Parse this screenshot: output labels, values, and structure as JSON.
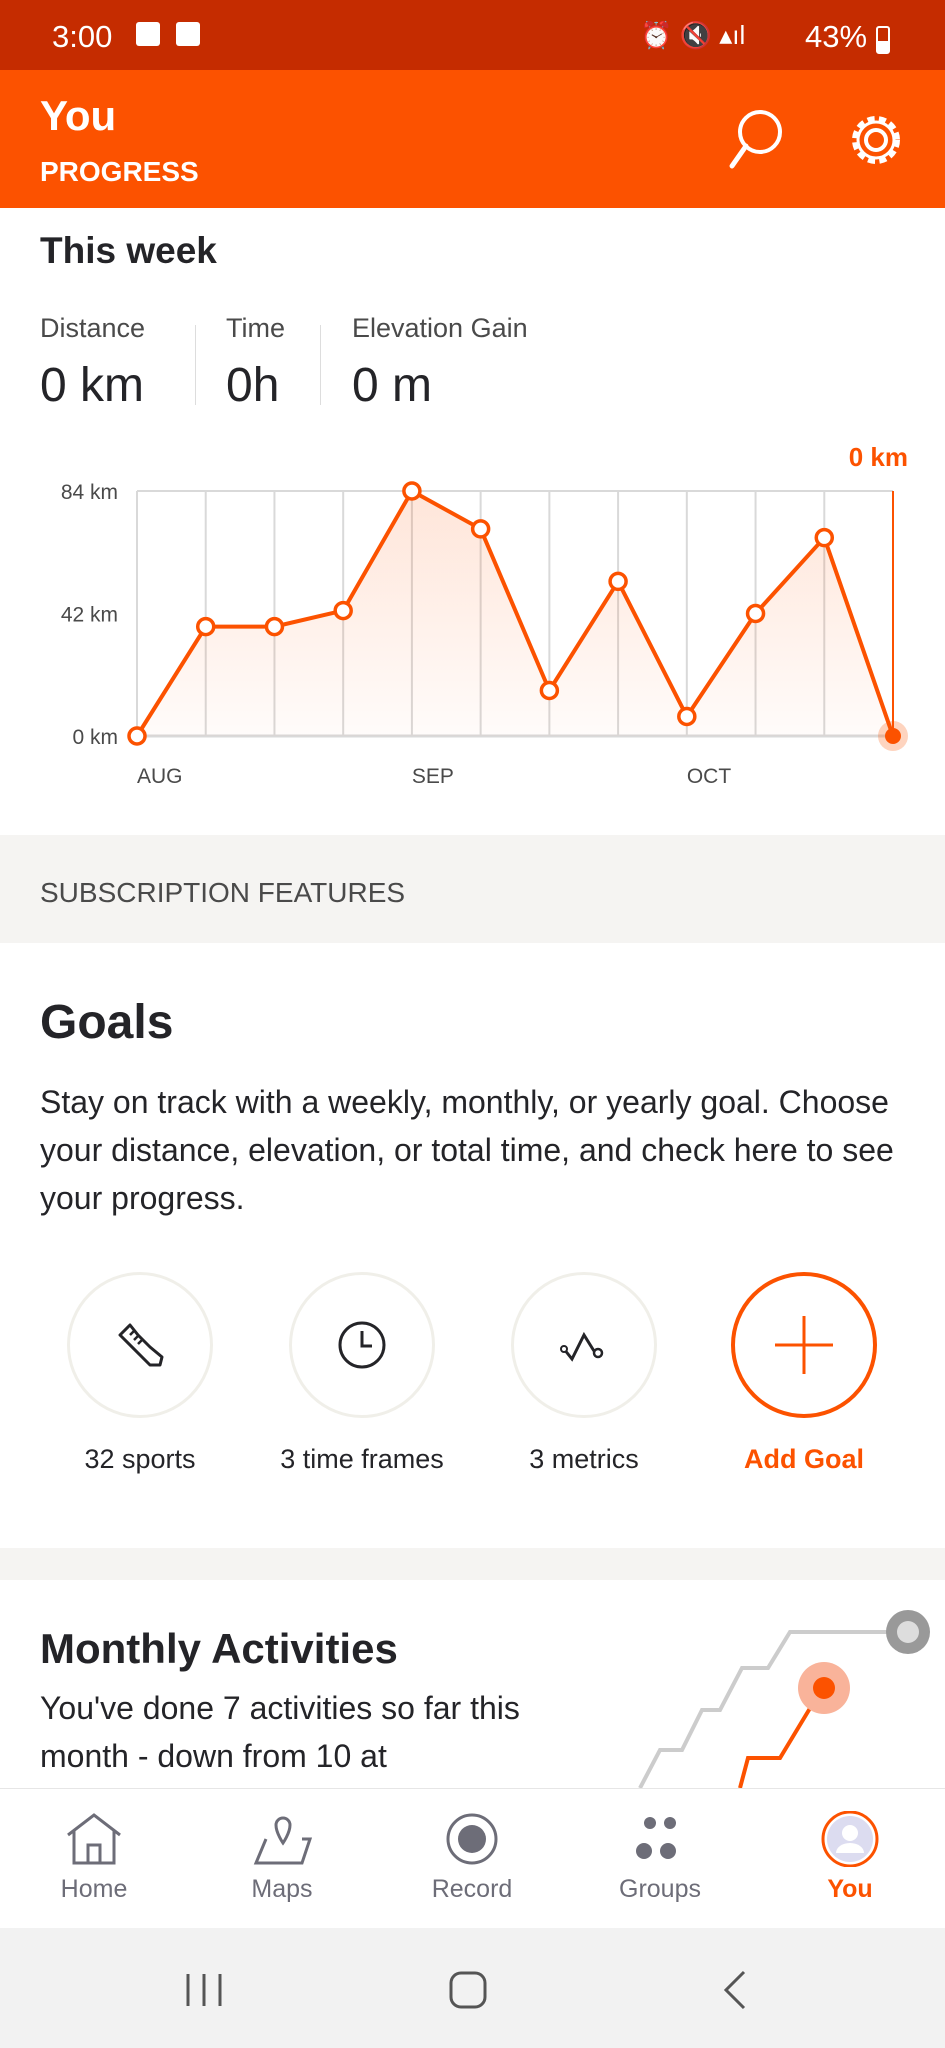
{
  "status_bar": {
    "time": "3:00",
    "battery": "43%"
  },
  "header": {
    "title": "You",
    "subtitle": "PROGRESS"
  },
  "this_week": {
    "title": "This week",
    "stats": [
      {
        "label": "Distance",
        "value": "0 km"
      },
      {
        "label": "Time",
        "value": "0h"
      },
      {
        "label": "Elevation Gain",
        "value": "0 m"
      }
    ]
  },
  "chart_data": {
    "type": "line",
    "current_label": "0 km",
    "y_ticks": [
      "84 km",
      "42 km",
      "0 km"
    ],
    "ylim": [
      0,
      84
    ],
    "x_labels": [
      "AUG",
      "SEP",
      "OCT"
    ],
    "x_label_index": [
      0,
      4,
      8
    ],
    "values": [
      0,
      37.5,
      37.5,
      43,
      84,
      71,
      15.6,
      53,
      6.7,
      42,
      68,
      0
    ],
    "grid": true,
    "colors": {
      "line": "#fc5200"
    }
  },
  "subscription": {
    "label": "SUBSCRIPTION FEATURES"
  },
  "goals": {
    "title": "Goals",
    "description": "Stay on track with a weekly, monthly, or yearly goal. Choose your distance, elevation, or total time, and check here to see your progress.",
    "items": [
      {
        "label": "32 sports",
        "icon": "shoe-icon"
      },
      {
        "label": "3 time frames",
        "icon": "clock-icon"
      },
      {
        "label": "3 metrics",
        "icon": "metric-icon"
      },
      {
        "label": "Add Goal",
        "icon": "plus-icon"
      }
    ]
  },
  "monthly": {
    "title": "Monthly Activities",
    "text": "You've done 7 activities so far this month - down from 10 at"
  },
  "nav": {
    "items": [
      "Home",
      "Maps",
      "Record",
      "Groups",
      "You"
    ],
    "active": "You"
  },
  "colors": {
    "accent": "#fc5200"
  }
}
